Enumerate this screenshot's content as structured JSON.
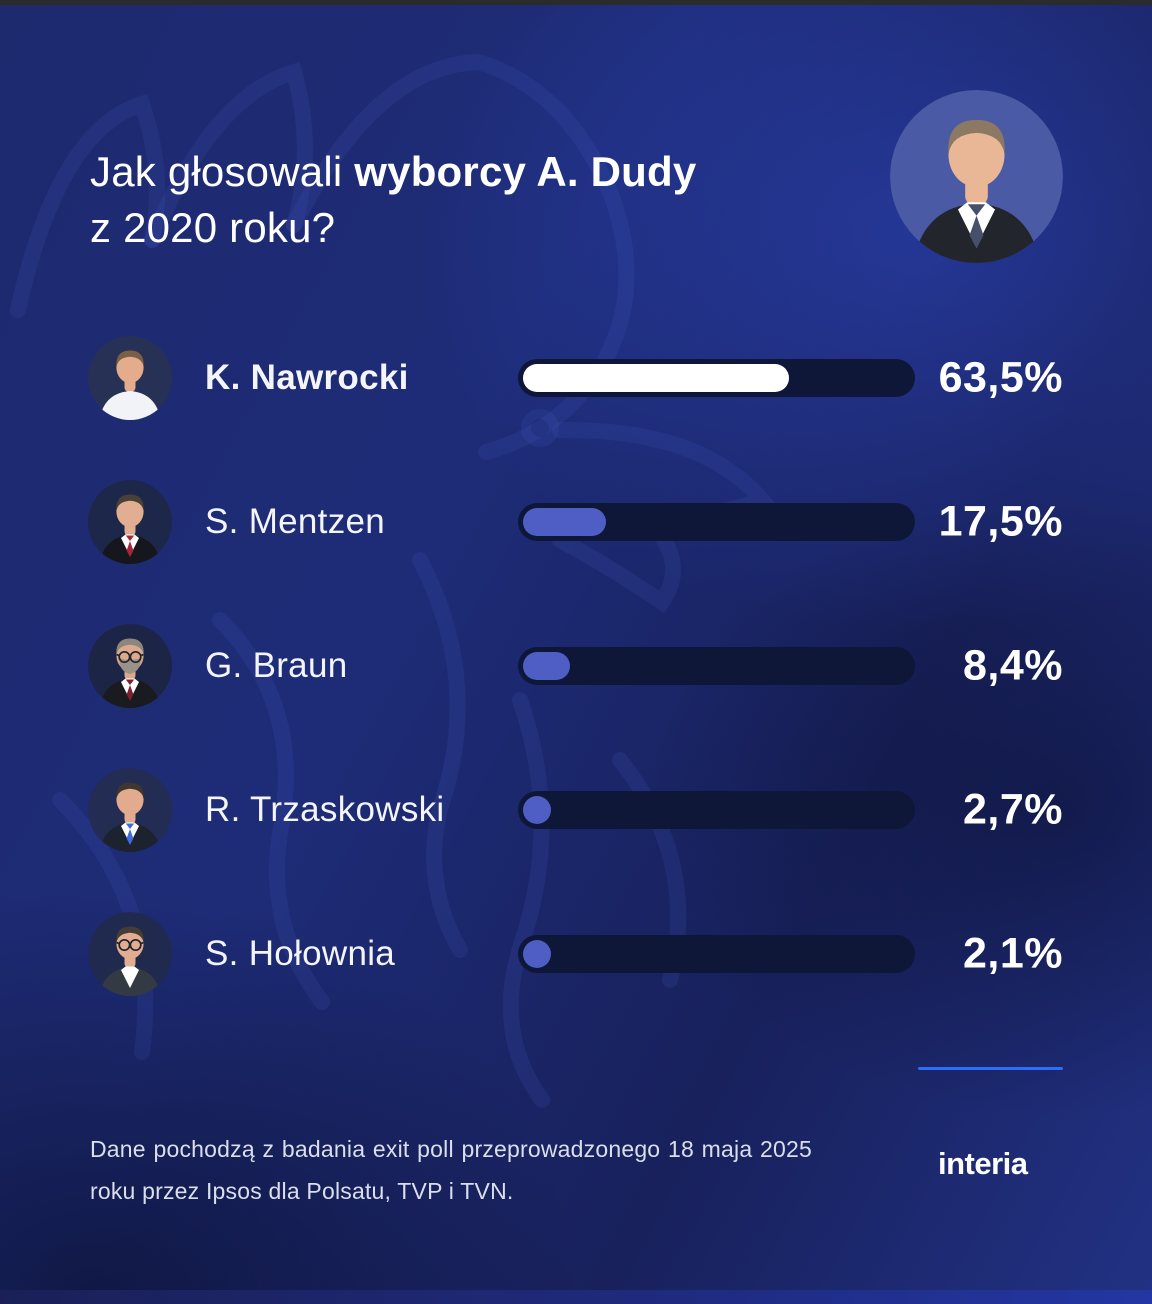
{
  "title": {
    "prefix": "Jak głosowali ",
    "bold": "wyborcy A. Dudy",
    "line2": "z 2020 roku?"
  },
  "header": {
    "duda_avatar": {
      "bg": "#4a5aa4",
      "skin": "#e9b795",
      "hair": "#8c7963",
      "torso": "#23252d",
      "shirt": "#ffffff",
      "tie": "#46506b",
      "glasses": false,
      "beard": null
    }
  },
  "chart_data": {
    "type": "bar",
    "orientation": "horizontal",
    "title": "Jak głosowali wyborcy A. Dudy z 2020 roku?",
    "categories": [
      "K. Nawrocki",
      "S. Mentzen",
      "G. Braun",
      "R. Trzaskowski",
      "S. Hołownia"
    ],
    "values": [
      63.5,
      17.5,
      8.4,
      2.7,
      2.1
    ],
    "value_labels": [
      "63,5%",
      "17,5%",
      "8,4%",
      "2,7%",
      "2,1%"
    ],
    "unit": "%",
    "xlim": [
      0,
      100
    ],
    "grid": false,
    "legend": false,
    "track_color": "#0f1738",
    "fill_colors": [
      "#ffffff",
      "#4f5ec4",
      "#4f5ec4",
      "#4f5ec4",
      "#4f5ec4"
    ],
    "source_note": "Dane pochodzą z badania exit poll przeprowadzonego 18 maja 2025 roku przez Ipsos dla Polsatu, TVP i TVN."
  },
  "rows": [
    {
      "name": "K. Nawrocki",
      "value": 63.5,
      "value_label": "63,5%",
      "bold": true,
      "fill_color": "#ffffff",
      "avatar": {
        "bg": "#273156",
        "skin": "#e4ac8d",
        "hair": "#7a5f45",
        "torso": "#f2f3f6",
        "shirt": null,
        "tie": null,
        "glasses": false,
        "beard": null
      }
    },
    {
      "name": "S. Mentzen",
      "value": 17.5,
      "value_label": "17,5%",
      "bold": false,
      "fill_color": "#4f5ec4",
      "avatar": {
        "bg": "#1d2749",
        "skin": "#e2ae92",
        "hair": "#4a4038",
        "torso": "#16171d",
        "shirt": "#ffffff",
        "tie": "#a82737",
        "glasses": false,
        "beard": null
      }
    },
    {
      "name": "G. Braun",
      "value": 8.4,
      "value_label": "8,4%",
      "bold": false,
      "fill_color": "#4f5ec4",
      "avatar": {
        "bg": "#1c2545",
        "skin": "#dda98c",
        "hair": "#8e867c",
        "torso": "#1a1b20",
        "shirt": "#ffffff",
        "tie": "#7e1f2c",
        "glasses": true,
        "beard": "#9a9187"
      }
    },
    {
      "name": "R. Trzaskowski",
      "value": 2.7,
      "value_label": "2,7%",
      "bold": false,
      "fill_color": "#4f5ec4",
      "avatar": {
        "bg": "#232c52",
        "skin": "#e2ab8e",
        "hair": "#3f362e",
        "torso": "#1c222e",
        "shirt": "#ffffff",
        "tie": "#3e6cd8",
        "glasses": false,
        "beard": null
      }
    },
    {
      "name": "S. Hołownia",
      "value": 2.1,
      "value_label": "2,1%",
      "bold": false,
      "fill_color": "#4f5ec4",
      "avatar": {
        "bg": "#202a4e",
        "skin": "#e3ad90",
        "hair": "#463c36",
        "torso": "#343a44",
        "shirt": "#ffffff",
        "tie": null,
        "glasses": true,
        "beard": null
      }
    }
  ],
  "footer": {
    "lines": [
      "Dane pochodzą z badania exit poll przeprowadzonego 18 maja 2025",
      "roku przez Ipsos dla Polsatu, TVP i TVN."
    ],
    "brand": "interia",
    "accent_color": "#2e6df5"
  },
  "colors": {
    "background": "#1e2a6e",
    "bar_track": "#0f1738",
    "bar_fill": "#4f5ec4",
    "bar_fill_top": "#ffffff",
    "text": "#ffffff"
  }
}
